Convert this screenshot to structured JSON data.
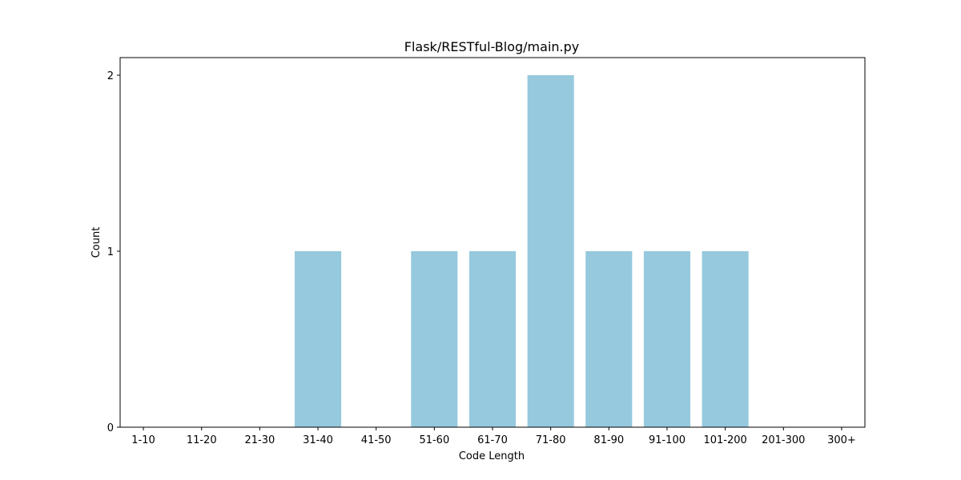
{
  "chart_data": {
    "type": "bar",
    "title": "Flask/RESTful-Blog/main.py",
    "xlabel": "Code Length",
    "ylabel": "Count",
    "categories": [
      "1-10",
      "11-20",
      "21-30",
      "31-40",
      "41-50",
      "51-60",
      "61-70",
      "71-80",
      "81-90",
      "91-100",
      "101-200",
      "201-300",
      "300+"
    ],
    "values": [
      0,
      0,
      0,
      1,
      0,
      1,
      1,
      2,
      1,
      1,
      1,
      0,
      0
    ],
    "ylim": [
      0,
      2.1
    ],
    "yticks": [
      0,
      1,
      2
    ],
    "bar_color": "#96c9dd",
    "grid": false,
    "legend": "none"
  }
}
